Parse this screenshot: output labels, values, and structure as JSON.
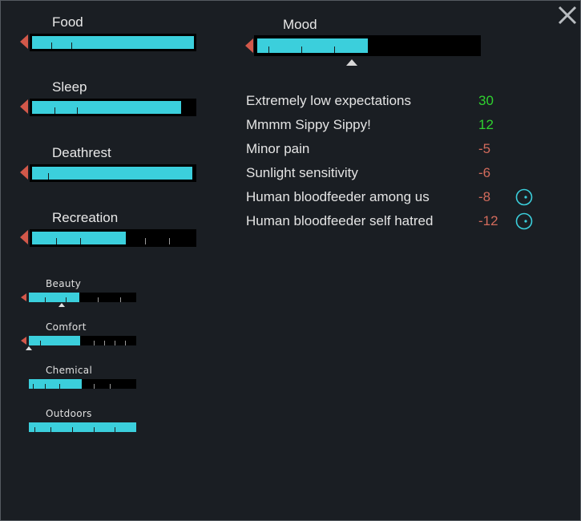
{
  "window": {
    "close_icon": "close-x-icon",
    "colors": {
      "bar_fill": "#3bcfdc",
      "bar_bg": "#000000",
      "arrow_down": "#d2584a",
      "positive": "#2fd12f",
      "negative": "#d26b5c",
      "icon_cyan": "#3bcfdc"
    }
  },
  "needs": [
    {
      "label": "Food",
      "level": 1.0
    },
    {
      "label": "Sleep",
      "level": 0.92
    },
    {
      "label": "Deathrest",
      "level": 0.99
    },
    {
      "label": "Recreation",
      "level": 0.58
    }
  ],
  "small_needs": [
    {
      "label": "Beauty",
      "level": 0.47
    },
    {
      "label": "Comfort",
      "level": 0.48
    },
    {
      "label": "Chemical",
      "level": 0.49
    },
    {
      "label": "Outdoors",
      "level": 1.0
    }
  ],
  "mood": {
    "label": "Mood",
    "level": 0.5
  },
  "thoughts": [
    {
      "label": "Extremely low expectations",
      "value": "30",
      "sign": "pos",
      "icon": ""
    },
    {
      "label": "Mmmm Sippy Sippy!",
      "value": "12",
      "sign": "pos",
      "icon": ""
    },
    {
      "label": "Minor pain",
      "value": "-5",
      "sign": "neg",
      "icon": ""
    },
    {
      "label": "Sunlight sensitivity",
      "value": "-6",
      "sign": "neg",
      "icon": ""
    },
    {
      "label": "Human bloodfeeder among us",
      "value": "-8",
      "sign": "neg",
      "icon": "bloodfeeder-icon"
    },
    {
      "label": "Human bloodfeeder self hatred",
      "value": "-12",
      "sign": "neg",
      "icon": "bloodfeeder-icon"
    }
  ]
}
